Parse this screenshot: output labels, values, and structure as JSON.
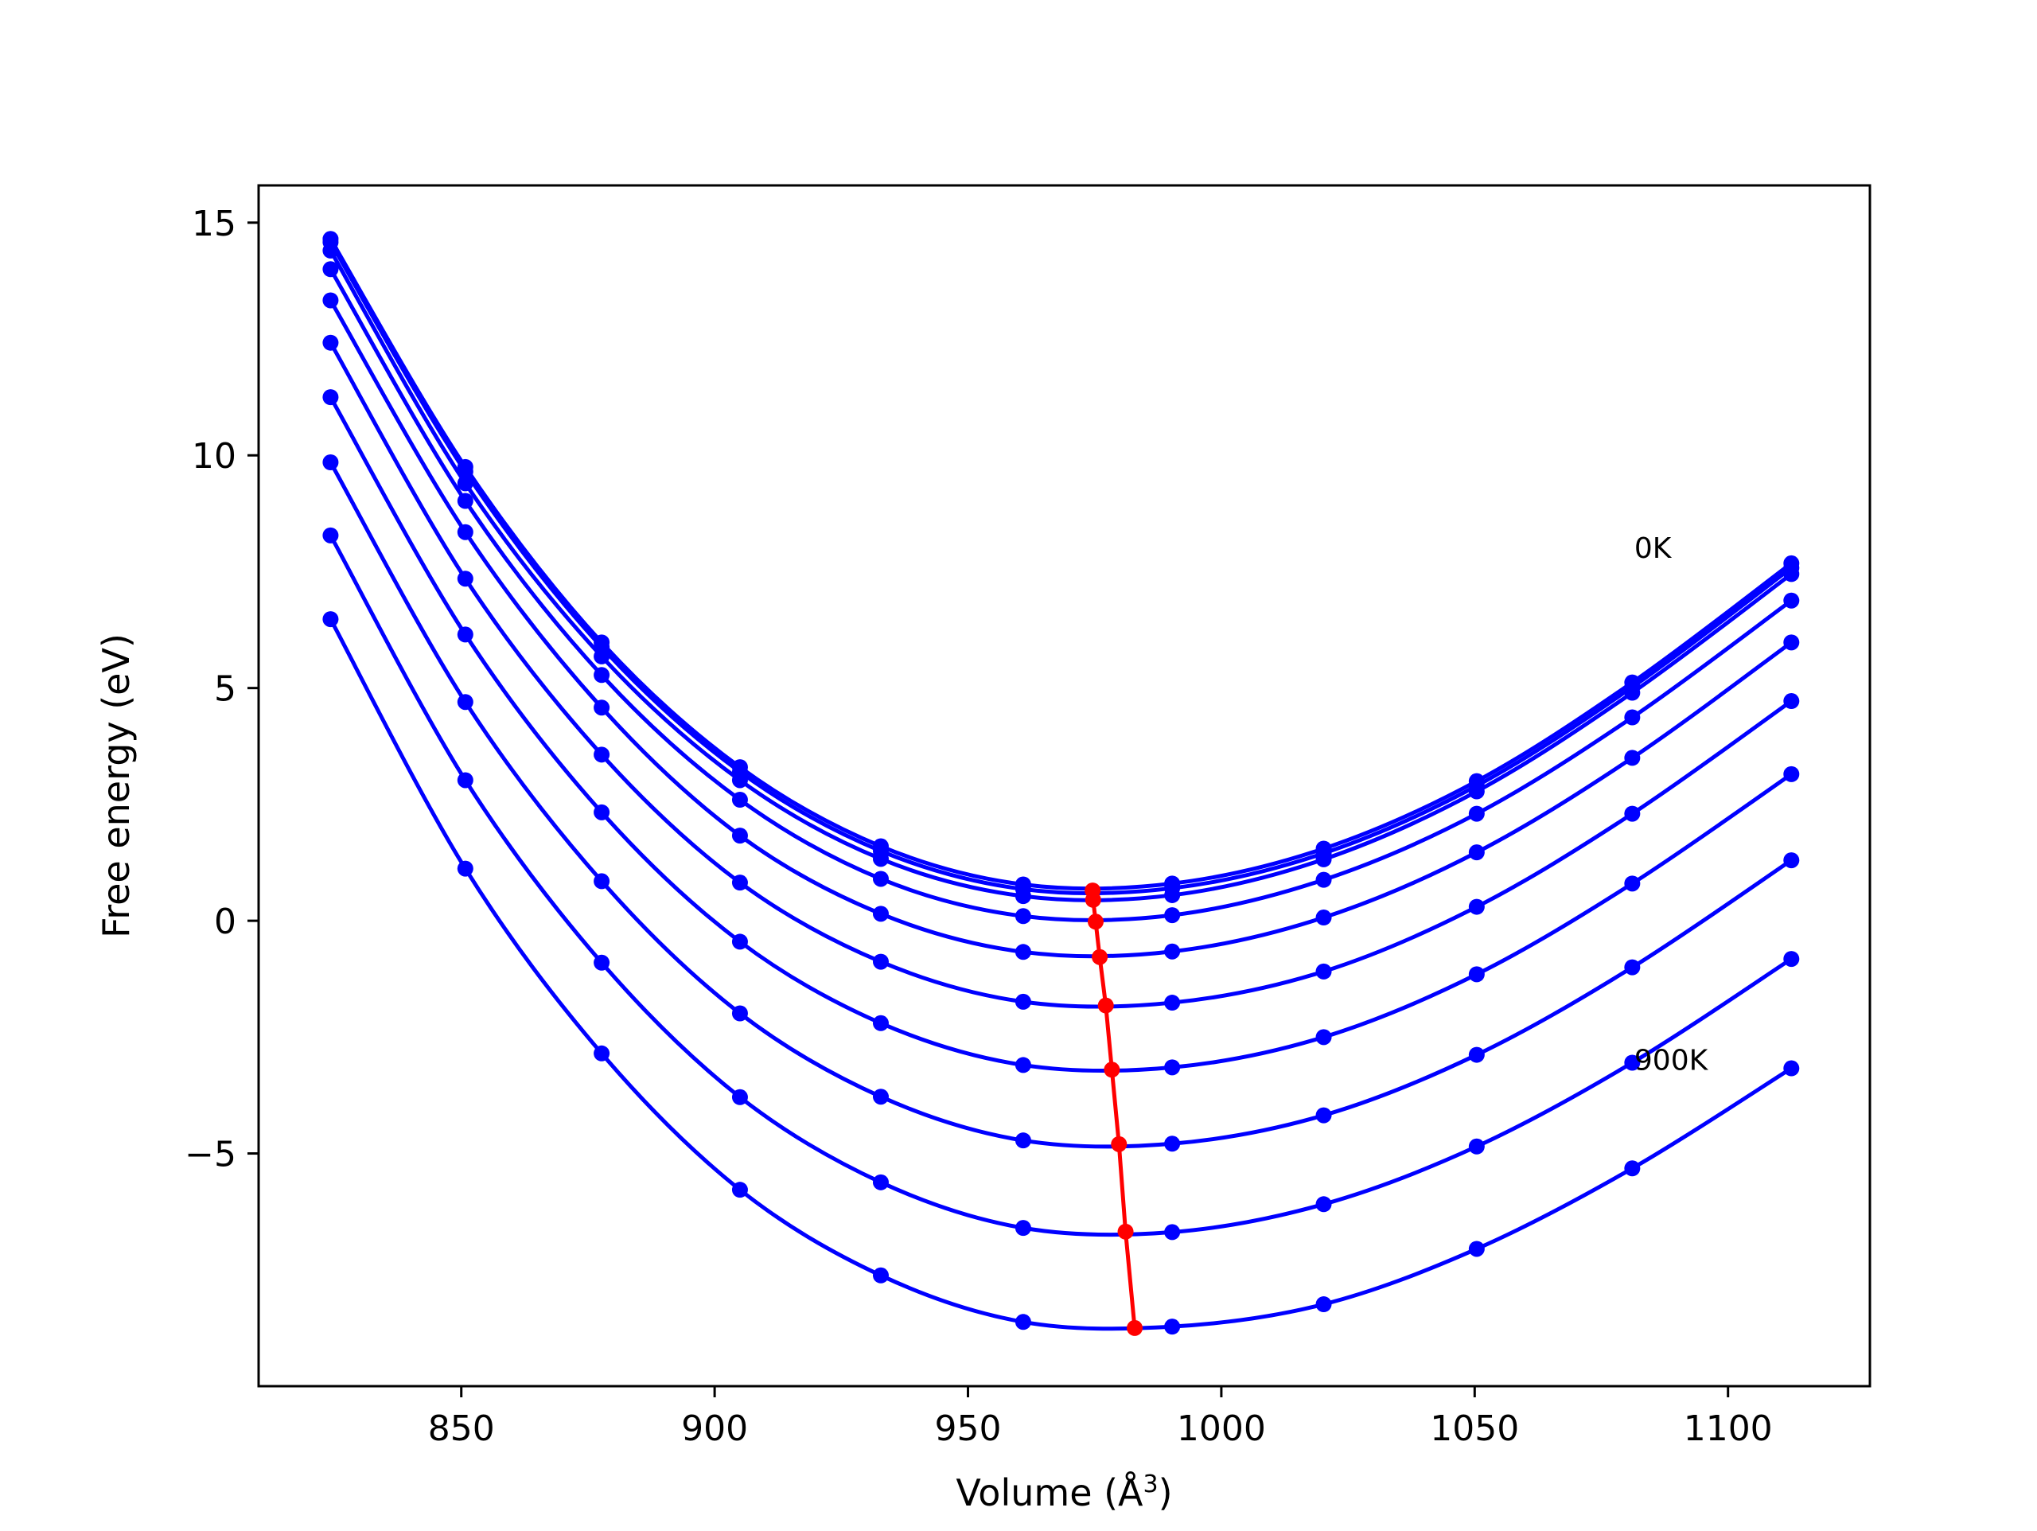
{
  "chart_data": {
    "type": "line",
    "title": "",
    "xlabel": "Volume (Å",
    "xlabel_superscript": "3",
    "xlabel_suffix": ")",
    "ylabel": "Free energy (eV)",
    "xlim": [
      810,
      1128
    ],
    "ylim": [
      -10,
      15.8
    ],
    "x_ticks": [
      850,
      900,
      950,
      1000,
      1050,
      1100
    ],
    "y_ticks": [
      15,
      10,
      5,
      0,
      -5
    ],
    "y_tick_labels": [
      "15",
      "10",
      "5",
      "0",
      "−5"
    ],
    "x_tick_labels": [
      "850",
      "900",
      "950",
      "1000",
      "1050",
      "1100"
    ],
    "grid": false,
    "volumes": [
      824.2,
      850.8,
      877.7,
      905.0,
      932.8,
      960.9,
      990.3,
      1020.2,
      1050.4,
      1081.1,
      1112.5
    ],
    "series": [
      {
        "values": [
          14.65,
          9.75,
          5.98,
          3.3,
          1.6,
          0.78,
          0.8,
          1.55,
          3.0,
          5.12,
          7.68
        ],
        "color": "#0000ff"
      },
      {
        "values": [
          14.58,
          9.65,
          5.88,
          3.2,
          1.5,
          0.68,
          0.7,
          1.45,
          2.9,
          5.02,
          7.58
        ],
        "color": "#0000ff"
      },
      {
        "values": [
          14.4,
          9.4,
          5.68,
          3.02,
          1.33,
          0.53,
          0.55,
          1.32,
          2.78,
          4.9,
          7.45
        ],
        "color": "#0000ff"
      },
      {
        "values": [
          14.0,
          9.02,
          5.28,
          2.6,
          0.9,
          0.1,
          0.12,
          0.88,
          2.3,
          4.37,
          6.88
        ],
        "color": "#0000ff"
      },
      {
        "values": [
          13.33,
          8.35,
          4.58,
          1.83,
          0.15,
          -0.67,
          -0.66,
          0.07,
          1.47,
          3.5,
          5.98
        ],
        "color": "#0000ff"
      },
      {
        "values": [
          12.42,
          7.35,
          3.57,
          0.82,
          -0.88,
          -1.74,
          -1.76,
          -1.09,
          0.3,
          2.3,
          4.72
        ],
        "color": "#0000ff"
      },
      {
        "values": [
          11.25,
          6.15,
          2.33,
          -0.45,
          -2.2,
          -3.1,
          -3.15,
          -2.5,
          -1.15,
          0.8,
          3.15
        ],
        "color": "#0000ff"
      },
      {
        "values": [
          9.85,
          4.7,
          0.85,
          -1.99,
          -3.78,
          -4.72,
          -4.79,
          -4.18,
          -2.88,
          -1.0,
          1.3
        ],
        "color": "#0000ff"
      },
      {
        "values": [
          8.28,
          3.02,
          -0.9,
          -3.79,
          -5.62,
          -6.6,
          -6.69,
          -6.09,
          -4.85,
          -3.05,
          -0.82
        ],
        "color": "#0000ff"
      },
      {
        "values": [
          6.48,
          1.12,
          -2.85,
          -5.78,
          -7.62,
          -8.62,
          -8.72,
          -8.24,
          -7.05,
          -5.32,
          -3.17
        ],
        "color": "#0000ff"
      }
    ],
    "minimum_line": {
      "color": "#ff0000",
      "x": [
        974.6,
        974.7,
        975.2,
        976.0,
        977.2,
        978.4,
        979.8,
        981.1,
        982.9
      ],
      "y": [
        0.65,
        0.45,
        -0.02,
        -0.78,
        -1.82,
        -3.2,
        -4.8,
        -6.68,
        -8.75
      ]
    },
    "annotations": [
      {
        "text": "0K",
        "x": 1081.5,
        "y": 7.8
      },
      {
        "text": "900K",
        "x": 1081.5,
        "y": -3.2
      }
    ]
  }
}
